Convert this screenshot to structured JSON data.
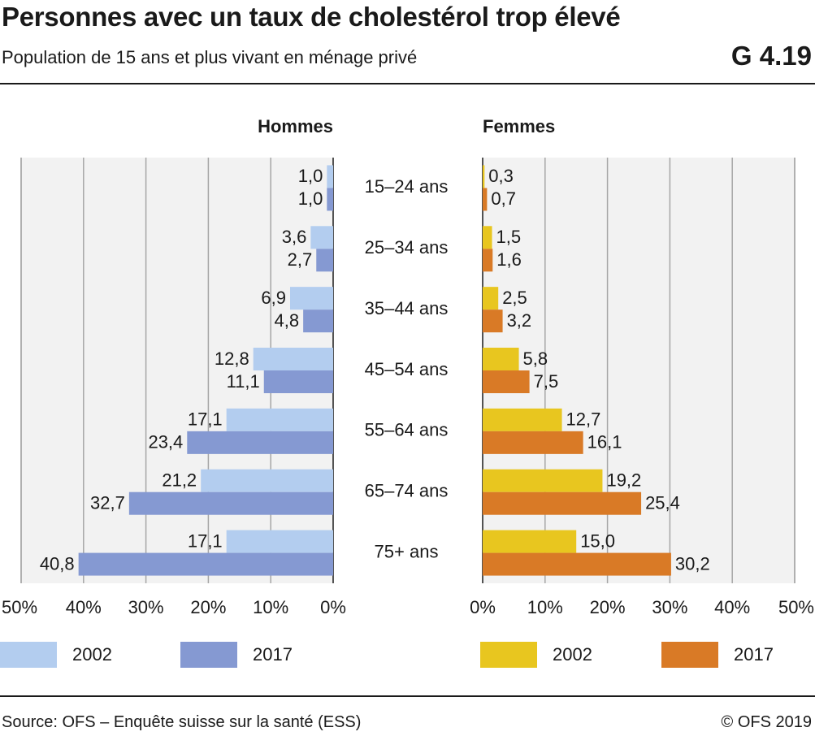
{
  "header": {
    "title": "Personnes avec un taux de cholestérol trop élevé",
    "subtitle": "Population de 15 ans et plus vivant en ménage privé",
    "code": "G 4.19"
  },
  "footer": {
    "source": "Source: OFS – Enquête suisse sur la santé (ESS)",
    "copyright": "© OFS 2019"
  },
  "colors": {
    "men_2002": "#b3cdef",
    "men_2017": "#8599d2",
    "women_2002": "#e8c61f",
    "women_2017": "#d97a26",
    "plot_background": "#f2f2f2",
    "grid": "#a6a6a6"
  },
  "chart_data": [
    {
      "type": "bar",
      "orientation": "horizontal",
      "title": "Hommes",
      "categories": [
        "15–24 ans",
        "25–34 ans",
        "35–44 ans",
        "45–54 ans",
        "55–64 ans",
        "65–74 ans",
        "75+ ans"
      ],
      "series": [
        {
          "name": "2002",
          "values": [
            1.0,
            3.6,
            6.9,
            12.8,
            17.1,
            21.2,
            17.1
          ],
          "labels": [
            "1,0",
            "3,6",
            "6,9",
            "12,8",
            "17,1",
            "21,2",
            "17,1"
          ]
        },
        {
          "name": "2017",
          "values": [
            1.0,
            2.7,
            4.8,
            11.1,
            23.4,
            32.7,
            40.8
          ],
          "labels": [
            "1,0",
            "2,7",
            "4,8",
            "11,1",
            "23,4",
            "32,7",
            "40,8"
          ]
        }
      ],
      "xlim": [
        0,
        50
      ],
      "reversed": true,
      "ticks": [
        "0%",
        "10%",
        "20%",
        "30%",
        "40%",
        "50%"
      ],
      "grid": true,
      "legend": "bottom"
    },
    {
      "type": "bar",
      "orientation": "horizontal",
      "title": "Femmes",
      "categories": [
        "15–24 ans",
        "25–34 ans",
        "35–44 ans",
        "45–54 ans",
        "55–64 ans",
        "65–74 ans",
        "75+ ans"
      ],
      "series": [
        {
          "name": "2002",
          "values": [
            0.3,
            1.5,
            2.5,
            5.8,
            12.7,
            19.2,
            15.0
          ],
          "labels": [
            "0,3",
            "1,5",
            "2,5",
            "5,8",
            "12,7",
            "19,2",
            "15,0"
          ]
        },
        {
          "name": "2017",
          "values": [
            0.7,
            1.6,
            3.2,
            7.5,
            16.1,
            25.4,
            30.2
          ],
          "labels": [
            "0,7",
            "1,6",
            "3,2",
            "7,5",
            "16,1",
            "25,4",
            "30,2"
          ]
        }
      ],
      "xlim": [
        0,
        50
      ],
      "reversed": false,
      "ticks": [
        "0%",
        "10%",
        "20%",
        "30%",
        "40%",
        "50%"
      ],
      "grid": true,
      "legend": "bottom"
    }
  ]
}
